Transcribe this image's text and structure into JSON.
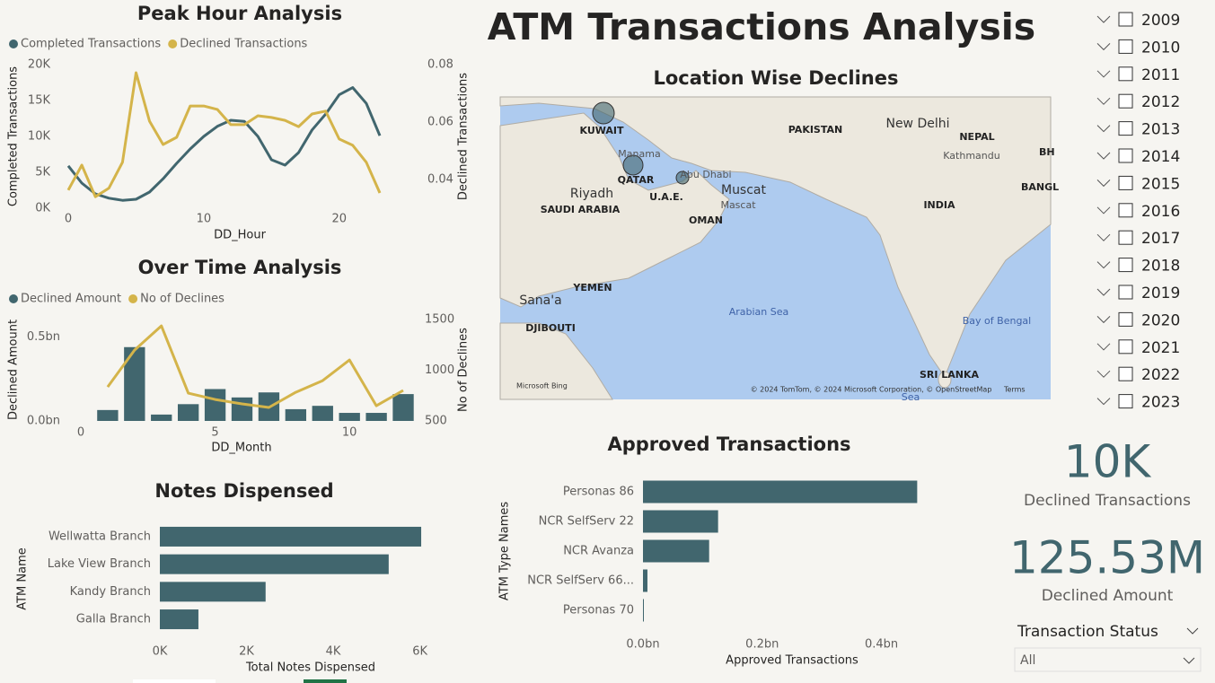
{
  "title": "ATM Transactions Analysis",
  "chart_data": [
    {
      "type": "line",
      "title": "Peak Hour Analysis",
      "x_label": "DD_Hour",
      "y_label": "Completed Transactions",
      "y2_label": "Declined Transactions",
      "x": [
        0,
        1,
        2,
        3,
        4,
        5,
        6,
        7,
        8,
        9,
        10,
        11,
        12,
        13,
        14,
        15,
        16,
        17,
        18,
        19,
        20,
        21,
        22,
        23
      ],
      "series": [
        {
          "name": "Completed Transactions",
          "color": "#41666e",
          "values": [
            5900,
            3500,
            2000,
            1400,
            1100,
            1250,
            2250,
            4100,
            6250,
            8250,
            10000,
            11400,
            12250,
            12100,
            10000,
            6750,
            6000,
            7750,
            10900,
            13100,
            15800,
            16800,
            14600,
            10100
          ]
        },
        {
          "name": "Declined Transactions",
          "color": "#d4b44a",
          "axis": "y2",
          "values": [
            0.0363,
            0.045,
            0.034,
            0.037,
            0.046,
            0.0772,
            0.0603,
            0.0522,
            0.0547,
            0.0656,
            0.0656,
            0.0644,
            0.0591,
            0.0591,
            0.0622,
            0.0616,
            0.0606,
            0.0584,
            0.0628,
            0.0638,
            0.0541,
            0.0519,
            0.046,
            0.0353
          ]
        }
      ],
      "xlim": [
        -0.4,
        23.4
      ],
      "xticks": [
        0,
        10,
        20
      ],
      "ylim": [
        0,
        20000
      ],
      "yticks": [
        {
          "value": 0,
          "label": "0K"
        },
        {
          "value": 5000,
          "label": "5K"
        },
        {
          "value": 10000,
          "label": "10K"
        },
        {
          "value": 15000,
          "label": "15K"
        },
        {
          "value": 20000,
          "label": "20K"
        }
      ],
      "y2lim": [
        0.03,
        0.08
      ],
      "y2ticks": [
        0.04,
        0.06,
        0.08
      ],
      "grid": false
    },
    {
      "type": "combo",
      "title": "Over Time Analysis",
      "x_label": "DD_Month",
      "y_label": "Declined Amount",
      "y2_label": "No of Declines",
      "x": [
        1,
        2,
        3,
        4,
        5,
        6,
        7,
        8,
        9,
        10,
        11,
        12
      ],
      "series": [
        {
          "name": "Declined Amount",
          "color": "#41666e",
          "kind": "bar",
          "values": [
            0.065,
            0.44,
            0.038,
            0.1,
            0.19,
            0.14,
            0.17,
            0.07,
            0.09,
            0.048,
            0.048,
            0.16
          ]
        },
        {
          "name": "No of Declines",
          "color": "#d4b44a",
          "kind": "line",
          "axis": "y2",
          "values": [
            836,
            1199,
            1438,
            774,
            712,
            668,
            633,
            783,
            898,
            1102,
            650,
            801
          ]
        }
      ],
      "xlim": [
        -0.5,
        12.5
      ],
      "xticks": [
        0,
        5,
        10
      ],
      "ylim": [
        0,
        0.61
      ],
      "yticks": [
        {
          "value": 0,
          "label": "0.0bn"
        },
        {
          "value": 0.5,
          "label": "0.5bn"
        }
      ],
      "y2lim": [
        500,
        1510
      ],
      "y2ticks": [
        500,
        1000,
        1500
      ],
      "grid": false
    },
    {
      "type": "barh",
      "title": "Notes Dispensed",
      "x_label": "Total Notes Dispensed",
      "y_label": "ATM Name",
      "color": "#41666e",
      "categories": [
        "Wellwatta Branch",
        "Lake View Branch",
        "Kandy Branch",
        "Galla Branch"
      ],
      "values": [
        6030,
        5280,
        2440,
        890
      ],
      "xlim": [
        0,
        6050
      ],
      "xticks": [
        {
          "value": 0,
          "label": "0K"
        },
        {
          "value": 2000,
          "label": "2K"
        },
        {
          "value": 4000,
          "label": "4K"
        },
        {
          "value": 6000,
          "label": "6K"
        }
      ],
      "grid": false
    },
    {
      "type": "barh",
      "title": "Approved Transactions",
      "x_label": "Approved Transactions",
      "y_label": "ATM Type Names",
      "color": "#41666e",
      "categories": [
        "Personas 86",
        "NCR SelfServ 22",
        "NCR Avanza",
        "NCR SelfServ 66...",
        "Personas 70"
      ],
      "values": [
        0.46,
        0.126,
        0.111,
        0.0075,
        0.0015
      ],
      "xlim": [
        0,
        0.47
      ],
      "xticks": [
        {
          "value": 0,
          "label": "0.0bn"
        },
        {
          "value": 0.2,
          "label": "0.2bn"
        },
        {
          "value": 0.4,
          "label": "0.4bn"
        }
      ],
      "grid": false
    }
  ],
  "map": {
    "title": "Location Wise Declines",
    "labels": [
      "KUWAIT",
      "PAKISTAN",
      "New Delhi",
      "NEPAL",
      "Kathmandu",
      "BH",
      "Manama",
      "QATAR",
      "Abu Dhabi",
      "U.A.E.",
      "Muscat",
      "Mascat",
      "Riyadh",
      "SAUDI ARABIA",
      "OMAN",
      "INDIA",
      "BANGL",
      "YEMEN",
      "Sana'a",
      "DJIBOUTI",
      "Arabian Sea",
      "Bay of Bengal",
      "SRI LANKA",
      "Sea"
    ],
    "provider": "Microsoft Bing",
    "attribution": "© 2024 TomTom, © 2024 Microsoft Corporation, © OpenStreetMap",
    "terms": "Terms"
  },
  "year_slicer": [
    "2009",
    "2010",
    "2011",
    "2012",
    "2013",
    "2014",
    "2015",
    "2016",
    "2017",
    "2018",
    "2019",
    "2020",
    "2021",
    "2022",
    "2023"
  ],
  "cards": [
    {
      "value": "10K",
      "label": "Declined Transactions"
    },
    {
      "value": "125.53M",
      "label": "Declined Amount"
    }
  ],
  "filter": {
    "title": "Transaction Status",
    "value": "All"
  }
}
